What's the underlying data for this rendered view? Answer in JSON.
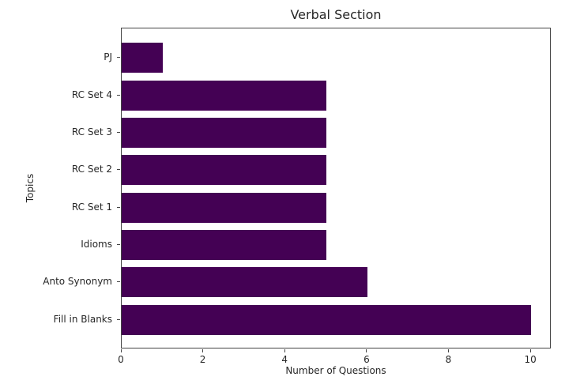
{
  "chart_data": {
    "type": "bar",
    "orientation": "horizontal",
    "title": "Verbal Section",
    "xlabel": "Number of Questions",
    "ylabel": "Topics",
    "categories_top_to_bottom": [
      "PJ",
      "RC Set 4",
      "RC Set 3",
      "RC Set 2",
      "RC Set 1",
      "Idioms",
      "Anto Synonym",
      "Fill in Blanks"
    ],
    "values_top_to_bottom": [
      1,
      5,
      5,
      5,
      5,
      5,
      6,
      10
    ],
    "xticks": [
      0,
      2,
      4,
      6,
      8,
      10
    ],
    "xlim": [
      0,
      10.5
    ],
    "bar_color": "#440154",
    "spine_color": "#444444",
    "background_color": "#ffffff",
    "grid": false,
    "legend": false
  }
}
